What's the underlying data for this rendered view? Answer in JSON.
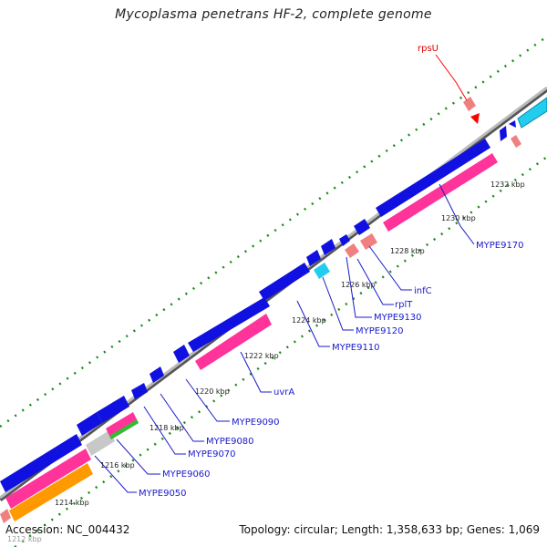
{
  "title": "Mycoplasma penetrans HF-2, complete genome",
  "footer": {
    "accession": "Accession: NC_004432",
    "summary": "Topology: circular; Length: 1,358,633 bp; Genes: 1,069"
  },
  "colors": {
    "blue": "#1010e0",
    "pink": "#ff3399",
    "salmon": "#f08080",
    "cyan": "#22ccee",
    "orange": "#ff9900",
    "gray": "#c8c8c8",
    "green_dot": "#1a8a1a",
    "label": "#1a1acc",
    "highlight": "#ff0000"
  },
  "ticks": [
    "1212 kbp",
    "1214 kbp",
    "1216 kbp",
    "1218 kbp",
    "1220 kbp",
    "1222 kbp",
    "1224 kbp",
    "1226 kbp",
    "1228 kbp",
    "1230 kbp",
    "1232 kbp"
  ],
  "genes": [
    {
      "name": "rpsU",
      "highlight": true
    },
    {
      "name": "MYPE9170"
    },
    {
      "name": "infC"
    },
    {
      "name": "rplT"
    },
    {
      "name": "MYPE9130"
    },
    {
      "name": "MYPE9120"
    },
    {
      "name": "MYPE9110"
    },
    {
      "name": "uvrA"
    },
    {
      "name": "MYPE9090"
    },
    {
      "name": "MYPE9080"
    },
    {
      "name": "MYPE9070"
    },
    {
      "name": "MYPE9060"
    },
    {
      "name": "MYPE9050"
    }
  ]
}
